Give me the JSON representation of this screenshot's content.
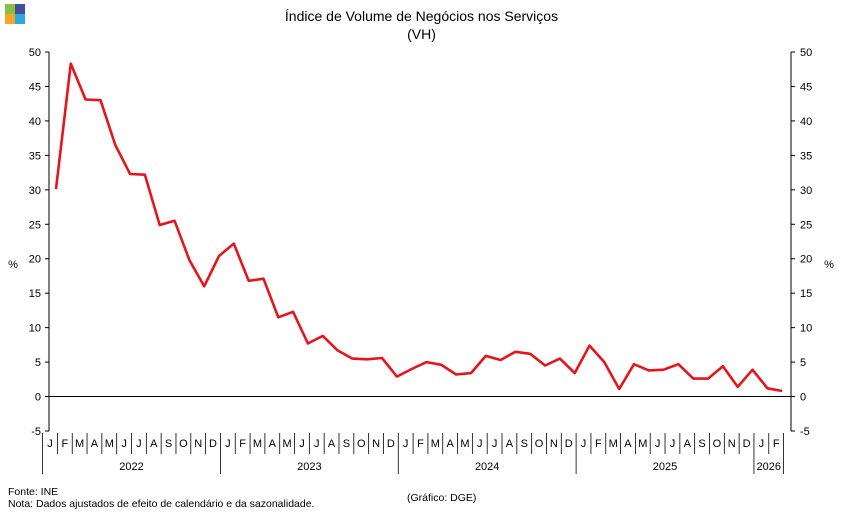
{
  "logo": {
    "colors": [
      "#8cbf3f",
      "#3f4fa0",
      "#f5a623",
      "#2fa8e0"
    ]
  },
  "chart_data": {
    "type": "line",
    "title": "Índice de Volume de Negócios nos Serviços",
    "subtitle": "(VH)",
    "ylabel_left": "%",
    "ylabel_right": "%",
    "ylim": [
      -5,
      50
    ],
    "yticks": [
      -5,
      0,
      5,
      10,
      15,
      20,
      25,
      30,
      35,
      40,
      45,
      50
    ],
    "grid": false,
    "legend": "none",
    "series_color": "#e8141c",
    "month_labels": [
      "J",
      "F",
      "M",
      "A",
      "M",
      "J",
      "J",
      "A",
      "S",
      "O",
      "N",
      "D"
    ],
    "years": [
      {
        "label": "2022",
        "months": 12
      },
      {
        "label": "2023",
        "months": 12
      },
      {
        "label": "2024",
        "months": 12
      },
      {
        "label": "2025",
        "months": 12
      },
      {
        "label": "2026",
        "months": 2
      }
    ],
    "series": [
      {
        "values": [
          30.1,
          48.3,
          43.1,
          43.0,
          36.5,
          32.3,
          32.2,
          24.9,
          25.5,
          19.8,
          16.0,
          20.4,
          22.2,
          16.8,
          17.1,
          11.5,
          12.3,
          7.7,
          8.8,
          6.7,
          5.5,
          5.4,
          5.6,
          2.9,
          4.0,
          5.0,
          4.6,
          3.2,
          3.4,
          5.9,
          5.3,
          6.5,
          6.2,
          4.5,
          5.5,
          3.4,
          7.4,
          5.0,
          1.1,
          4.7,
          3.8,
          3.9,
          4.7,
          2.6,
          2.6,
          4.4,
          1.4,
          3.9,
          1.2,
          0.8
        ]
      }
    ]
  },
  "footer": {
    "source": "Fonte: INE",
    "note": "Nota: Dados ajustados de efeito de calendário e da sazonalidade.",
    "credit": "(Gráfico: DGE)"
  }
}
